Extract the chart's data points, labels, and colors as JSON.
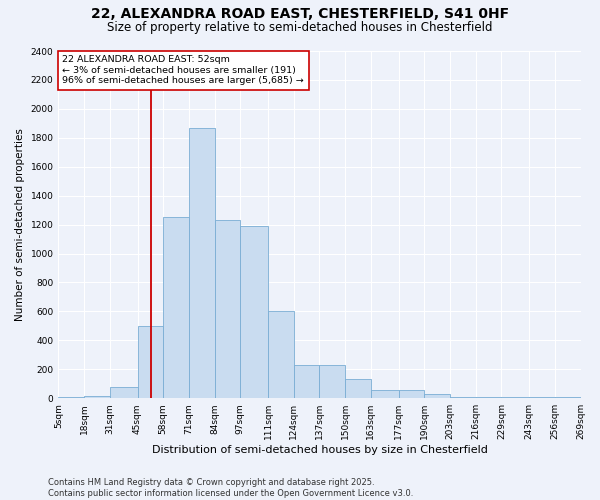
{
  "title1": "22, ALEXANDRA ROAD EAST, CHESTERFIELD, S41 0HF",
  "title2": "Size of property relative to semi-detached houses in Chesterfield",
  "xlabel": "Distribution of semi-detached houses by size in Chesterfield",
  "ylabel": "Number of semi-detached properties",
  "bin_edges": [
    5,
    18,
    31,
    45,
    58,
    71,
    84,
    97,
    111,
    124,
    137,
    150,
    163,
    177,
    190,
    203,
    216,
    229,
    243,
    256,
    269
  ],
  "bin_labels": [
    "5sqm",
    "18sqm",
    "31sqm",
    "45sqm",
    "58sqm",
    "71sqm",
    "84sqm",
    "97sqm",
    "111sqm",
    "124sqm",
    "137sqm",
    "150sqm",
    "163sqm",
    "177sqm",
    "190sqm",
    "203sqm",
    "216sqm",
    "229sqm",
    "243sqm",
    "256sqm",
    "269sqm"
  ],
  "counts": [
    10,
    15,
    80,
    500,
    1250,
    1870,
    1230,
    1190,
    600,
    230,
    230,
    130,
    55,
    55,
    30,
    10,
    10,
    5,
    5,
    5
  ],
  "bar_color": "#c9dcf0",
  "bar_edge_color": "#7aadd4",
  "property_size": 52,
  "vline_color": "#cc0000",
  "annotation_text": "22 ALEXANDRA ROAD EAST: 52sqm\n← 3% of semi-detached houses are smaller (191)\n96% of semi-detached houses are larger (5,685) →",
  "annotation_box_color": "#ffffff",
  "annotation_box_edge": "#cc0000",
  "ylim": [
    0,
    2400
  ],
  "yticks": [
    0,
    200,
    400,
    600,
    800,
    1000,
    1200,
    1400,
    1600,
    1800,
    2000,
    2200,
    2400
  ],
  "background_color": "#eef2fa",
  "grid_color": "#ffffff",
  "footer": "Contains HM Land Registry data © Crown copyright and database right 2025.\nContains public sector information licensed under the Open Government Licence v3.0.",
  "title1_fontsize": 10,
  "title2_fontsize": 8.5,
  "xlabel_fontsize": 8,
  "ylabel_fontsize": 7.5,
  "tick_fontsize": 6.5,
  "annotation_fontsize": 6.8,
  "footer_fontsize": 6.0
}
